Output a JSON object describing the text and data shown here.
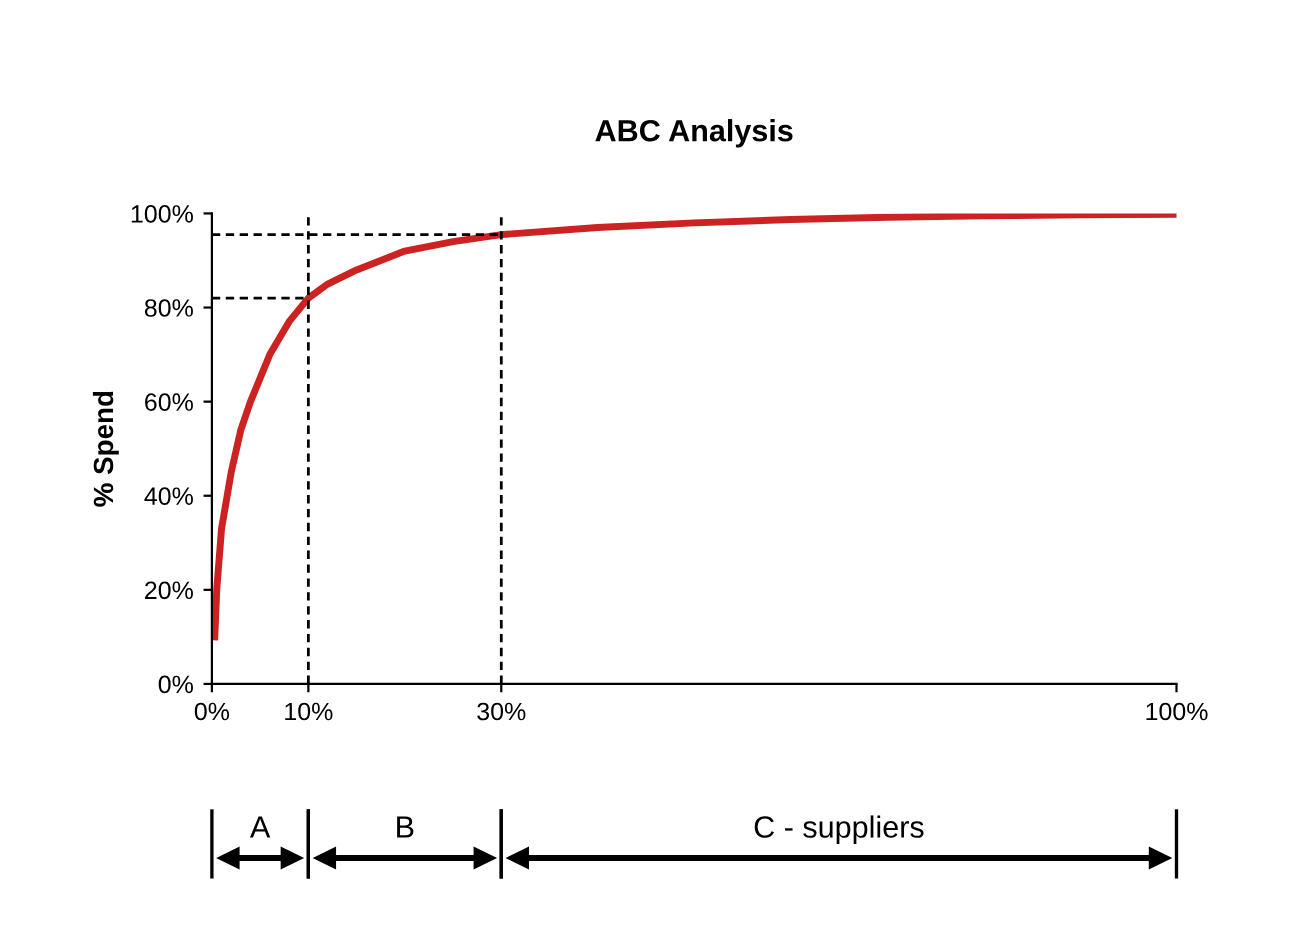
{
  "chart_data": {
    "type": "line",
    "title": "ABC Analysis",
    "ylabel": "% Spend",
    "x": [
      0.3,
      0.5,
      1,
      2,
      3,
      4,
      5,
      6,
      8,
      10,
      12,
      15,
      20,
      25,
      30,
      40,
      50,
      60,
      70,
      80,
      90,
      100
    ],
    "series": [
      {
        "color": "#cc2222",
        "values": [
          10,
          20,
          33,
          45,
          54,
          60,
          65,
          70,
          77,
          82,
          85,
          88,
          92,
          94,
          95.5,
          97,
          98,
          98.7,
          99.2,
          99.5,
          99.7,
          99.8
        ]
      }
    ],
    "xlim": [
      0,
      100
    ],
    "ylim": [
      0,
      100
    ],
    "xticks": [
      {
        "value": 0,
        "label": "0%"
      },
      {
        "value": 10,
        "label": "10%"
      },
      {
        "value": 30,
        "label": "30%"
      },
      {
        "value": 100,
        "label": "100%"
      }
    ],
    "yticks": [
      {
        "value": 0,
        "label": "0%"
      },
      {
        "value": 20,
        "label": "20%"
      },
      {
        "value": 40,
        "label": "40%"
      },
      {
        "value": 60,
        "label": "60%"
      },
      {
        "value": 80,
        "label": "80%"
      },
      {
        "value": 100,
        "label": "100%"
      }
    ],
    "ref_lines": [
      {
        "axis": "x",
        "value": 10,
        "line_style": "dashed",
        "color": "#000000"
      },
      {
        "axis": "x",
        "value": 30,
        "line_style": "dashed",
        "color": "#000000"
      },
      {
        "axis": "y",
        "value": 82,
        "line_style": "dashed",
        "color": "#000000"
      },
      {
        "axis": "y",
        "value": 95.5,
        "line_style": "dashed",
        "color": "#000000"
      }
    ],
    "annotations": [
      "A",
      "B",
      "C - suppliers"
    ],
    "grid": false,
    "legend": false,
    "marker": "none",
    "line_style": "solid"
  }
}
